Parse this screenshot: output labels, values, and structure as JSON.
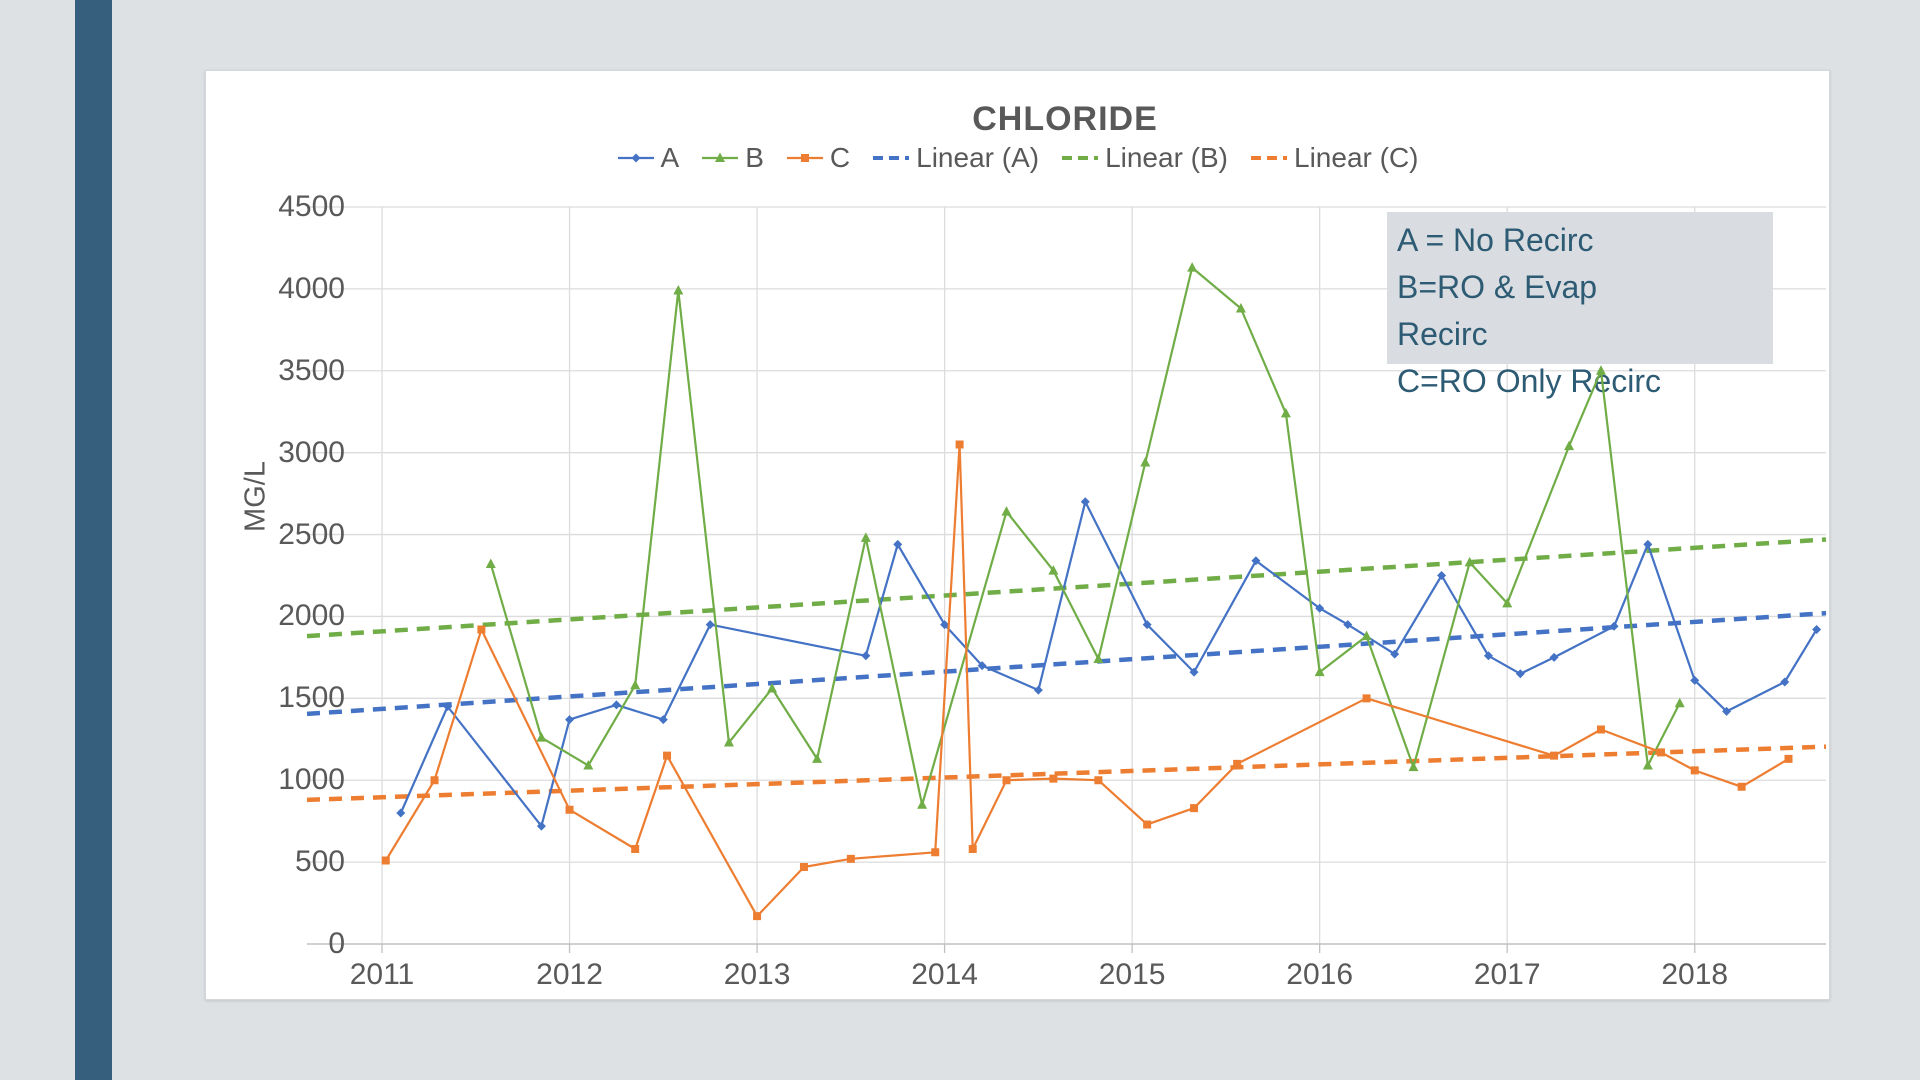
{
  "page": {
    "background_color": "#dde1e4",
    "sidebar_color": "#365f7d",
    "card_color": "#ffffff"
  },
  "legend": {
    "items": [
      {
        "label": "A",
        "color": "#4472C4",
        "type": "series",
        "marker": "diamond"
      },
      {
        "label": "B",
        "color": "#70AD47",
        "type": "series",
        "marker": "triangle"
      },
      {
        "label": "C",
        "color": "#ED7D31",
        "type": "series",
        "marker": "square"
      },
      {
        "label": "Linear (A)",
        "color": "#4472C4",
        "type": "trendline"
      },
      {
        "label": "Linear (B)",
        "color": "#70AD47",
        "type": "trendline"
      },
      {
        "label": "Linear (C)",
        "color": "#ED7D31",
        "type": "trendline"
      }
    ]
  },
  "annotation": {
    "lines": [
      "A = No Recirc",
      "B=RO & Evap",
      "Recirc",
      "C=RO Only Recirc"
    ],
    "boxed_line_count": 3,
    "text_color": "#2e5b74",
    "box_color": "#d9dde1"
  },
  "chart_data": {
    "type": "line",
    "title": "CHLORIDE",
    "xlabel": "",
    "ylabel": "MG/L",
    "ylim": [
      0,
      4500
    ],
    "yticks": [
      0,
      500,
      1000,
      1500,
      2000,
      2500,
      3000,
      3500,
      4000,
      4500
    ],
    "xticks": [
      2011,
      2012,
      2013,
      2014,
      2015,
      2016,
      2017,
      2018
    ],
    "xlim": [
      2010.6,
      2018.7
    ],
    "grid": true,
    "legend_position": "top",
    "text_color": "#595959",
    "gridline_color": "#dcdcdc",
    "axis_line_color": "#c0c0c0",
    "series": [
      {
        "name": "A",
        "label_meaning": "No Recirc",
        "color": "#4472C4",
        "marker": "diamond",
        "points": [
          [
            2011.1,
            800
          ],
          [
            2011.35,
            1450
          ],
          [
            2011.85,
            720
          ],
          [
            2012.0,
            1370
          ],
          [
            2012.25,
            1460
          ],
          [
            2012.5,
            1370
          ],
          [
            2012.75,
            1950
          ],
          [
            2013.58,
            1760
          ],
          [
            2013.75,
            2440
          ],
          [
            2014.0,
            1950
          ],
          [
            2014.2,
            1700
          ],
          [
            2014.5,
            1550
          ],
          [
            2014.75,
            2700
          ],
          [
            2015.08,
            1950
          ],
          [
            2015.33,
            1660
          ],
          [
            2015.66,
            2340
          ],
          [
            2016.0,
            2050
          ],
          [
            2016.15,
            1950
          ],
          [
            2016.4,
            1770
          ],
          [
            2016.65,
            2250
          ],
          [
            2016.9,
            1760
          ],
          [
            2017.07,
            1650
          ],
          [
            2017.25,
            1750
          ],
          [
            2017.57,
            1940
          ],
          [
            2017.75,
            2440
          ],
          [
            2018.0,
            1610
          ],
          [
            2018.17,
            1420
          ],
          [
            2018.48,
            1600
          ],
          [
            2018.65,
            1920
          ]
        ]
      },
      {
        "name": "B",
        "label_meaning": "RO & Evap Recirc",
        "color": "#70AD47",
        "marker": "triangle",
        "points": [
          [
            2011.58,
            2320
          ],
          [
            2011.85,
            1260
          ],
          [
            2012.1,
            1090
          ],
          [
            2012.35,
            1580
          ],
          [
            2012.58,
            3990
          ],
          [
            2012.85,
            1230
          ],
          [
            2013.08,
            1560
          ],
          [
            2013.32,
            1130
          ],
          [
            2013.58,
            2480
          ],
          [
            2013.88,
            850
          ],
          [
            2014.33,
            2640
          ],
          [
            2014.58,
            2280
          ],
          [
            2014.82,
            1740
          ],
          [
            2015.07,
            2940
          ],
          [
            2015.32,
            4130
          ],
          [
            2015.58,
            3880
          ],
          [
            2015.82,
            3240
          ],
          [
            2016.0,
            1660
          ],
          [
            2016.25,
            1880
          ],
          [
            2016.5,
            1080
          ],
          [
            2016.8,
            2330
          ],
          [
            2017.0,
            2080
          ],
          [
            2017.33,
            3040
          ],
          [
            2017.5,
            3500
          ],
          [
            2017.75,
            1090
          ],
          [
            2017.92,
            1470
          ]
        ]
      },
      {
        "name": "C",
        "label_meaning": "RO Only Recirc",
        "color": "#ED7D31",
        "marker": "square",
        "points": [
          [
            2011.02,
            510
          ],
          [
            2011.28,
            1000
          ],
          [
            2011.53,
            1920
          ],
          [
            2012.0,
            820
          ],
          [
            2012.35,
            580
          ],
          [
            2012.52,
            1150
          ],
          [
            2013.0,
            170
          ],
          [
            2013.25,
            470
          ],
          [
            2013.5,
            520
          ],
          [
            2013.95,
            560
          ],
          [
            2014.08,
            3050
          ],
          [
            2014.15,
            580
          ],
          [
            2014.33,
            1000
          ],
          [
            2014.58,
            1010
          ],
          [
            2014.82,
            1000
          ],
          [
            2015.08,
            730
          ],
          [
            2015.33,
            830
          ],
          [
            2015.56,
            1100
          ],
          [
            2016.25,
            1500
          ],
          [
            2017.25,
            1150
          ],
          [
            2017.5,
            1310
          ],
          [
            2017.82,
            1170
          ],
          [
            2018.0,
            1060
          ],
          [
            2018.25,
            960
          ],
          [
            2018.5,
            1130
          ]
        ]
      }
    ],
    "trendlines": [
      {
        "name": "Linear (A)",
        "color": "#4472C4",
        "from": [
          2010.6,
          1405
        ],
        "to": [
          2018.7,
          2020
        ]
      },
      {
        "name": "Linear (B)",
        "color": "#70AD47",
        "from": [
          2010.6,
          1880
        ],
        "to": [
          2018.7,
          2470
        ]
      },
      {
        "name": "Linear (C)",
        "color": "#ED7D31",
        "from": [
          2010.6,
          880
        ],
        "to": [
          2018.7,
          1205
        ]
      }
    ]
  }
}
